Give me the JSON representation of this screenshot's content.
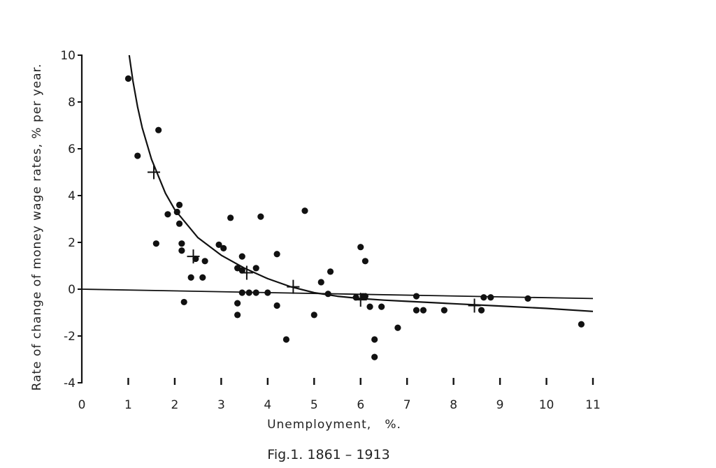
{
  "chart_data": {
    "type": "scatter",
    "title": "",
    "caption": "Fig.1. 1861 – 1913",
    "xlabel": "Unemployment,   %.",
    "ylabel": "Rate of change of money wage rates, % per year.",
    "xlim": [
      0,
      11
    ],
    "ylim": [
      -4,
      10
    ],
    "x_ticks": [
      "0",
      "1",
      "2",
      "3",
      "4",
      "5",
      "6",
      "7",
      "8",
      "9",
      "10",
      "11"
    ],
    "y_ticks": [
      "10",
      "8",
      "6",
      "4",
      "2",
      "0",
      "-2",
      "-4"
    ],
    "grid": false,
    "legend": "none",
    "series": [
      {
        "marker": "dot",
        "points": [
          [
            1.0,
            9.0
          ],
          [
            1.2,
            5.7
          ],
          [
            1.65,
            6.8
          ],
          [
            1.6,
            1.95
          ],
          [
            1.85,
            3.2
          ],
          [
            2.05,
            3.3
          ],
          [
            2.1,
            3.6
          ],
          [
            2.1,
            2.8
          ],
          [
            2.15,
            1.95
          ],
          [
            2.15,
            1.65
          ],
          [
            2.2,
            -0.55
          ],
          [
            2.35,
            0.5
          ],
          [
            2.45,
            1.3
          ],
          [
            2.6,
            0.5
          ],
          [
            2.65,
            1.2
          ],
          [
            2.95,
            1.9
          ],
          [
            3.05,
            1.75
          ],
          [
            3.2,
            3.05
          ],
          [
            3.35,
            0.9
          ],
          [
            3.35,
            -0.6
          ],
          [
            3.35,
            -1.1
          ],
          [
            3.45,
            1.4
          ],
          [
            3.45,
            0.8
          ],
          [
            3.45,
            -0.15
          ],
          [
            3.6,
            -0.15
          ],
          [
            3.75,
            0.9
          ],
          [
            3.75,
            -0.15
          ],
          [
            3.85,
            3.1
          ],
          [
            4.0,
            -0.15
          ],
          [
            4.2,
            1.5
          ],
          [
            4.2,
            -0.7
          ],
          [
            4.4,
            -2.15
          ],
          [
            4.8,
            3.35
          ],
          [
            5.0,
            -1.1
          ],
          [
            5.15,
            0.3
          ],
          [
            5.3,
            -0.2
          ],
          [
            5.35,
            0.75
          ],
          [
            5.9,
            -0.35
          ],
          [
            6.0,
            1.8
          ],
          [
            6.05,
            -0.3
          ],
          [
            6.1,
            1.2
          ],
          [
            6.1,
            -0.3
          ],
          [
            6.2,
            -0.75
          ],
          [
            6.3,
            -2.15
          ],
          [
            6.3,
            -2.9
          ],
          [
            6.45,
            -0.75
          ],
          [
            6.8,
            -1.65
          ],
          [
            7.2,
            -0.3
          ],
          [
            7.2,
            -0.9
          ],
          [
            7.35,
            -0.9
          ],
          [
            7.8,
            -0.9
          ],
          [
            8.6,
            -0.9
          ],
          [
            8.65,
            -0.35
          ],
          [
            8.8,
            -0.35
          ],
          [
            9.6,
            -0.4
          ],
          [
            10.75,
            -1.5
          ]
        ]
      },
      {
        "marker": "cross",
        "points": [
          [
            1.55,
            5.0
          ],
          [
            2.4,
            1.4
          ],
          [
            3.55,
            0.7
          ],
          [
            4.55,
            0.1
          ],
          [
            6.0,
            -0.45
          ],
          [
            8.45,
            -0.7
          ]
        ]
      }
    ],
    "curve": {
      "type": "fitted",
      "x": [
        1.02,
        1.1,
        1.2,
        1.3,
        1.5,
        1.8,
        2.0,
        2.5,
        3.0,
        3.5,
        4.0,
        4.5,
        5.0,
        5.5,
        6.0,
        6.5,
        7.0,
        8.0,
        9.0,
        10.0,
        11.0
      ],
      "y": [
        10.0,
        8.9,
        7.8,
        6.9,
        5.55,
        4.1,
        3.4,
        2.2,
        1.45,
        0.9,
        0.45,
        0.1,
        -0.15,
        -0.3,
        -0.4,
        -0.47,
        -0.52,
        -0.62,
        -0.72,
        -0.82,
        -0.95
      ]
    },
    "reference_line": {
      "from": [
        0,
        0
      ],
      "to": [
        11,
        -0.4
      ]
    }
  }
}
